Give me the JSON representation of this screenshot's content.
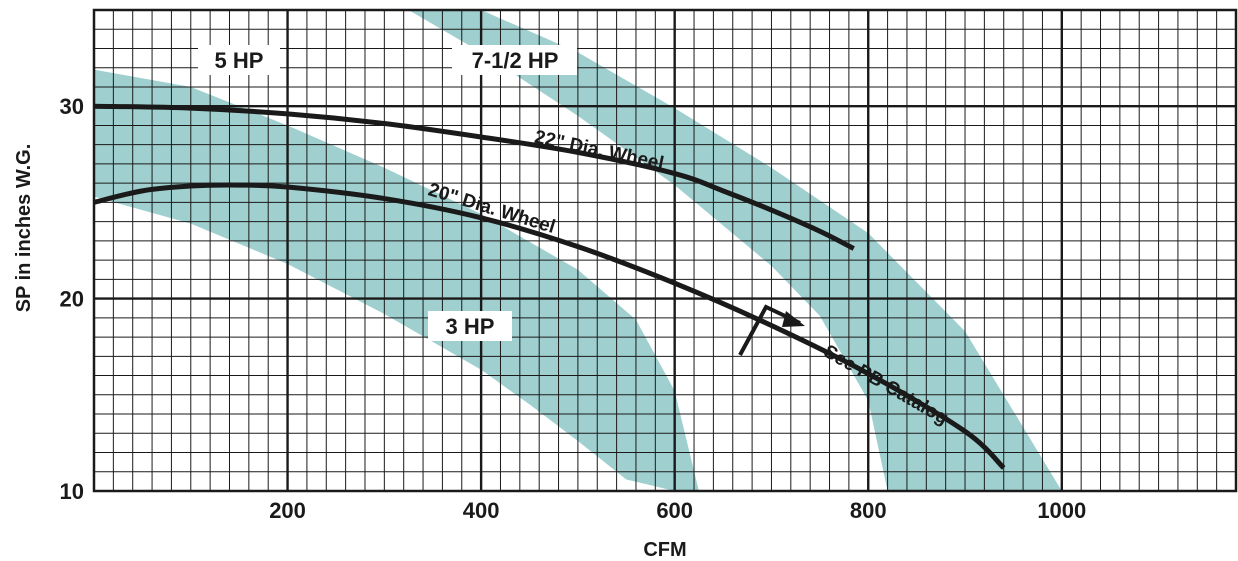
{
  "chart_data": {
    "type": "line",
    "xlabel": "CFM",
    "ylabel": "SP in inches W.G.",
    "xlim": [
      0,
      1180
    ],
    "ylim": [
      10,
      35
    ],
    "x_ticks": [
      200,
      400,
      600,
      800,
      1000
    ],
    "y_ticks": [
      10,
      20,
      30
    ],
    "grid": true,
    "colors": {
      "band": "#9fd0cf",
      "line": "#1a1a1a",
      "grid": "#1a1a1a"
    },
    "series": [
      {
        "name": "22\" Dia. Wheel",
        "x": [
          0,
          100,
          200,
          300,
          400,
          500,
          600,
          650,
          700,
          750,
          785
        ],
        "y": [
          30,
          29.9,
          29.6,
          29.1,
          28.4,
          27.6,
          26.5,
          25.6,
          24.6,
          23.5,
          22.6
        ]
      },
      {
        "name": "20\" Dia. Wheel",
        "x": [
          0,
          50,
          100,
          150,
          200,
          300,
          400,
          500,
          600,
          700,
          800,
          900,
          940
        ],
        "y": [
          25,
          25.6,
          25.85,
          25.9,
          25.8,
          25.2,
          24.2,
          22.7,
          20.8,
          18.6,
          16.1,
          13.1,
          11.2
        ]
      }
    ],
    "hp_bands": [
      {
        "name": "3 HP",
        "upper_x": [
          0,
          100,
          200,
          300,
          400,
          500,
          560,
          600,
          625
        ],
        "upper_y": [
          31.9,
          31,
          29,
          26.8,
          24.4,
          21.5,
          18.9,
          15.2,
          10
        ],
        "lower_x": [
          0,
          100,
          200,
          300,
          400,
          450,
          500,
          550,
          600,
          615
        ],
        "lower_y": [
          25.3,
          23.9,
          21.8,
          19.2,
          16.3,
          14.5,
          12.6,
          10.6,
          10,
          10
        ]
      },
      {
        "name": "7-1/2 HP",
        "upper_x": [
          238,
          300,
          400,
          500,
          600,
          700,
          800,
          900,
          1000
        ],
        "upper_y": [
          35,
          35,
          35,
          32.8,
          29.9,
          26.8,
          23.4,
          18.3,
          10
        ],
        "lower_x": [
          325,
          400,
          500,
          600,
          700,
          750,
          800,
          820
        ],
        "lower_y": [
          35,
          32.8,
          29.5,
          25.9,
          21.7,
          19.1,
          14.7,
          10
        ]
      }
    ],
    "labels": {
      "hp_5": "5 HP",
      "hp_7_5": "7-1/2 HP",
      "hp_3": "3 HP",
      "wheel_22": "22\" Dia. Wheel",
      "wheel_20": "20\" Dia. Wheel",
      "see_pb": "See PB Catalog"
    }
  }
}
